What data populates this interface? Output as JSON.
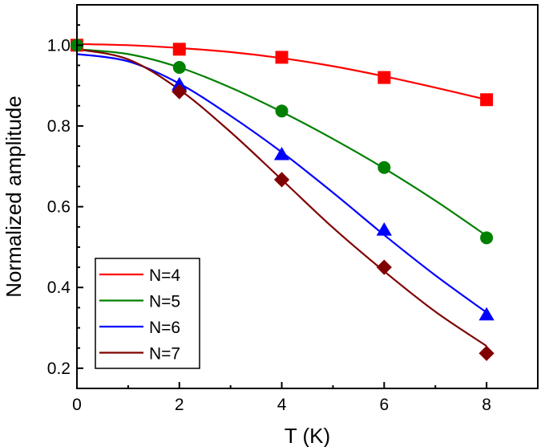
{
  "chart_data": {
    "type": "scatter",
    "xlabel": "T (K)",
    "ylabel": "Normalized amplitude",
    "xlim": [
      0,
      9
    ],
    "ylim": [
      0.15,
      1.1
    ],
    "xticks": [
      0,
      2,
      4,
      6,
      8
    ],
    "yticks": [
      0.2,
      0.4,
      0.6,
      0.8,
      1.0
    ],
    "xtick_labels": [
      "0",
      "2",
      "4",
      "6",
      "8"
    ],
    "ytick_labels": [
      "0.2",
      "0.4",
      "0.6",
      "0.8",
      "1.0"
    ],
    "grid": false,
    "legend_position": "bottom-left",
    "series": [
      {
        "name": "N=4",
        "color": "#ff0000",
        "marker": "square",
        "x": [
          0,
          2,
          4,
          6,
          8
        ],
        "y": [
          1.0,
          0.99,
          0.97,
          0.92,
          0.865
        ],
        "fit_x": [
          0,
          1,
          2,
          3,
          4,
          5,
          6,
          7,
          8
        ],
        "fit_y": [
          1.003,
          1.0,
          0.993,
          0.983,
          0.968,
          0.948,
          0.923,
          0.895,
          0.865
        ]
      },
      {
        "name": "N=5",
        "color": "#008000",
        "marker": "circle",
        "x": [
          0,
          2,
          4,
          6,
          8
        ],
        "y": [
          1.0,
          0.945,
          0.837,
          0.697,
          0.523
        ],
        "fit_x": [
          0,
          1,
          2,
          3,
          4,
          5,
          6,
          7,
          8
        ],
        "fit_y": [
          0.99,
          0.978,
          0.945,
          0.895,
          0.835,
          0.768,
          0.695,
          0.615,
          0.528
        ]
      },
      {
        "name": "N=6",
        "color": "#0000ff",
        "marker": "triangle",
        "x": [
          2,
          4,
          6,
          8
        ],
        "y": [
          0.903,
          0.73,
          0.543,
          0.333
        ],
        "fit_x": [
          0,
          1,
          2,
          3,
          4,
          5,
          6,
          7,
          8
        ],
        "fit_y": [
          0.978,
          0.96,
          0.905,
          0.825,
          0.735,
          0.635,
          0.53,
          0.43,
          0.338
        ]
      },
      {
        "name": "N=7",
        "color": "#800000",
        "marker": "diamond",
        "x": [
          2,
          4,
          6,
          8
        ],
        "y": [
          0.885,
          0.667,
          0.45,
          0.237
        ],
        "fit_x": [
          0,
          1,
          2,
          3,
          4,
          5,
          6,
          7,
          8
        ],
        "fit_y": [
          0.99,
          0.965,
          0.89,
          0.785,
          0.667,
          0.548,
          0.44,
          0.34,
          0.255
        ]
      }
    ]
  }
}
